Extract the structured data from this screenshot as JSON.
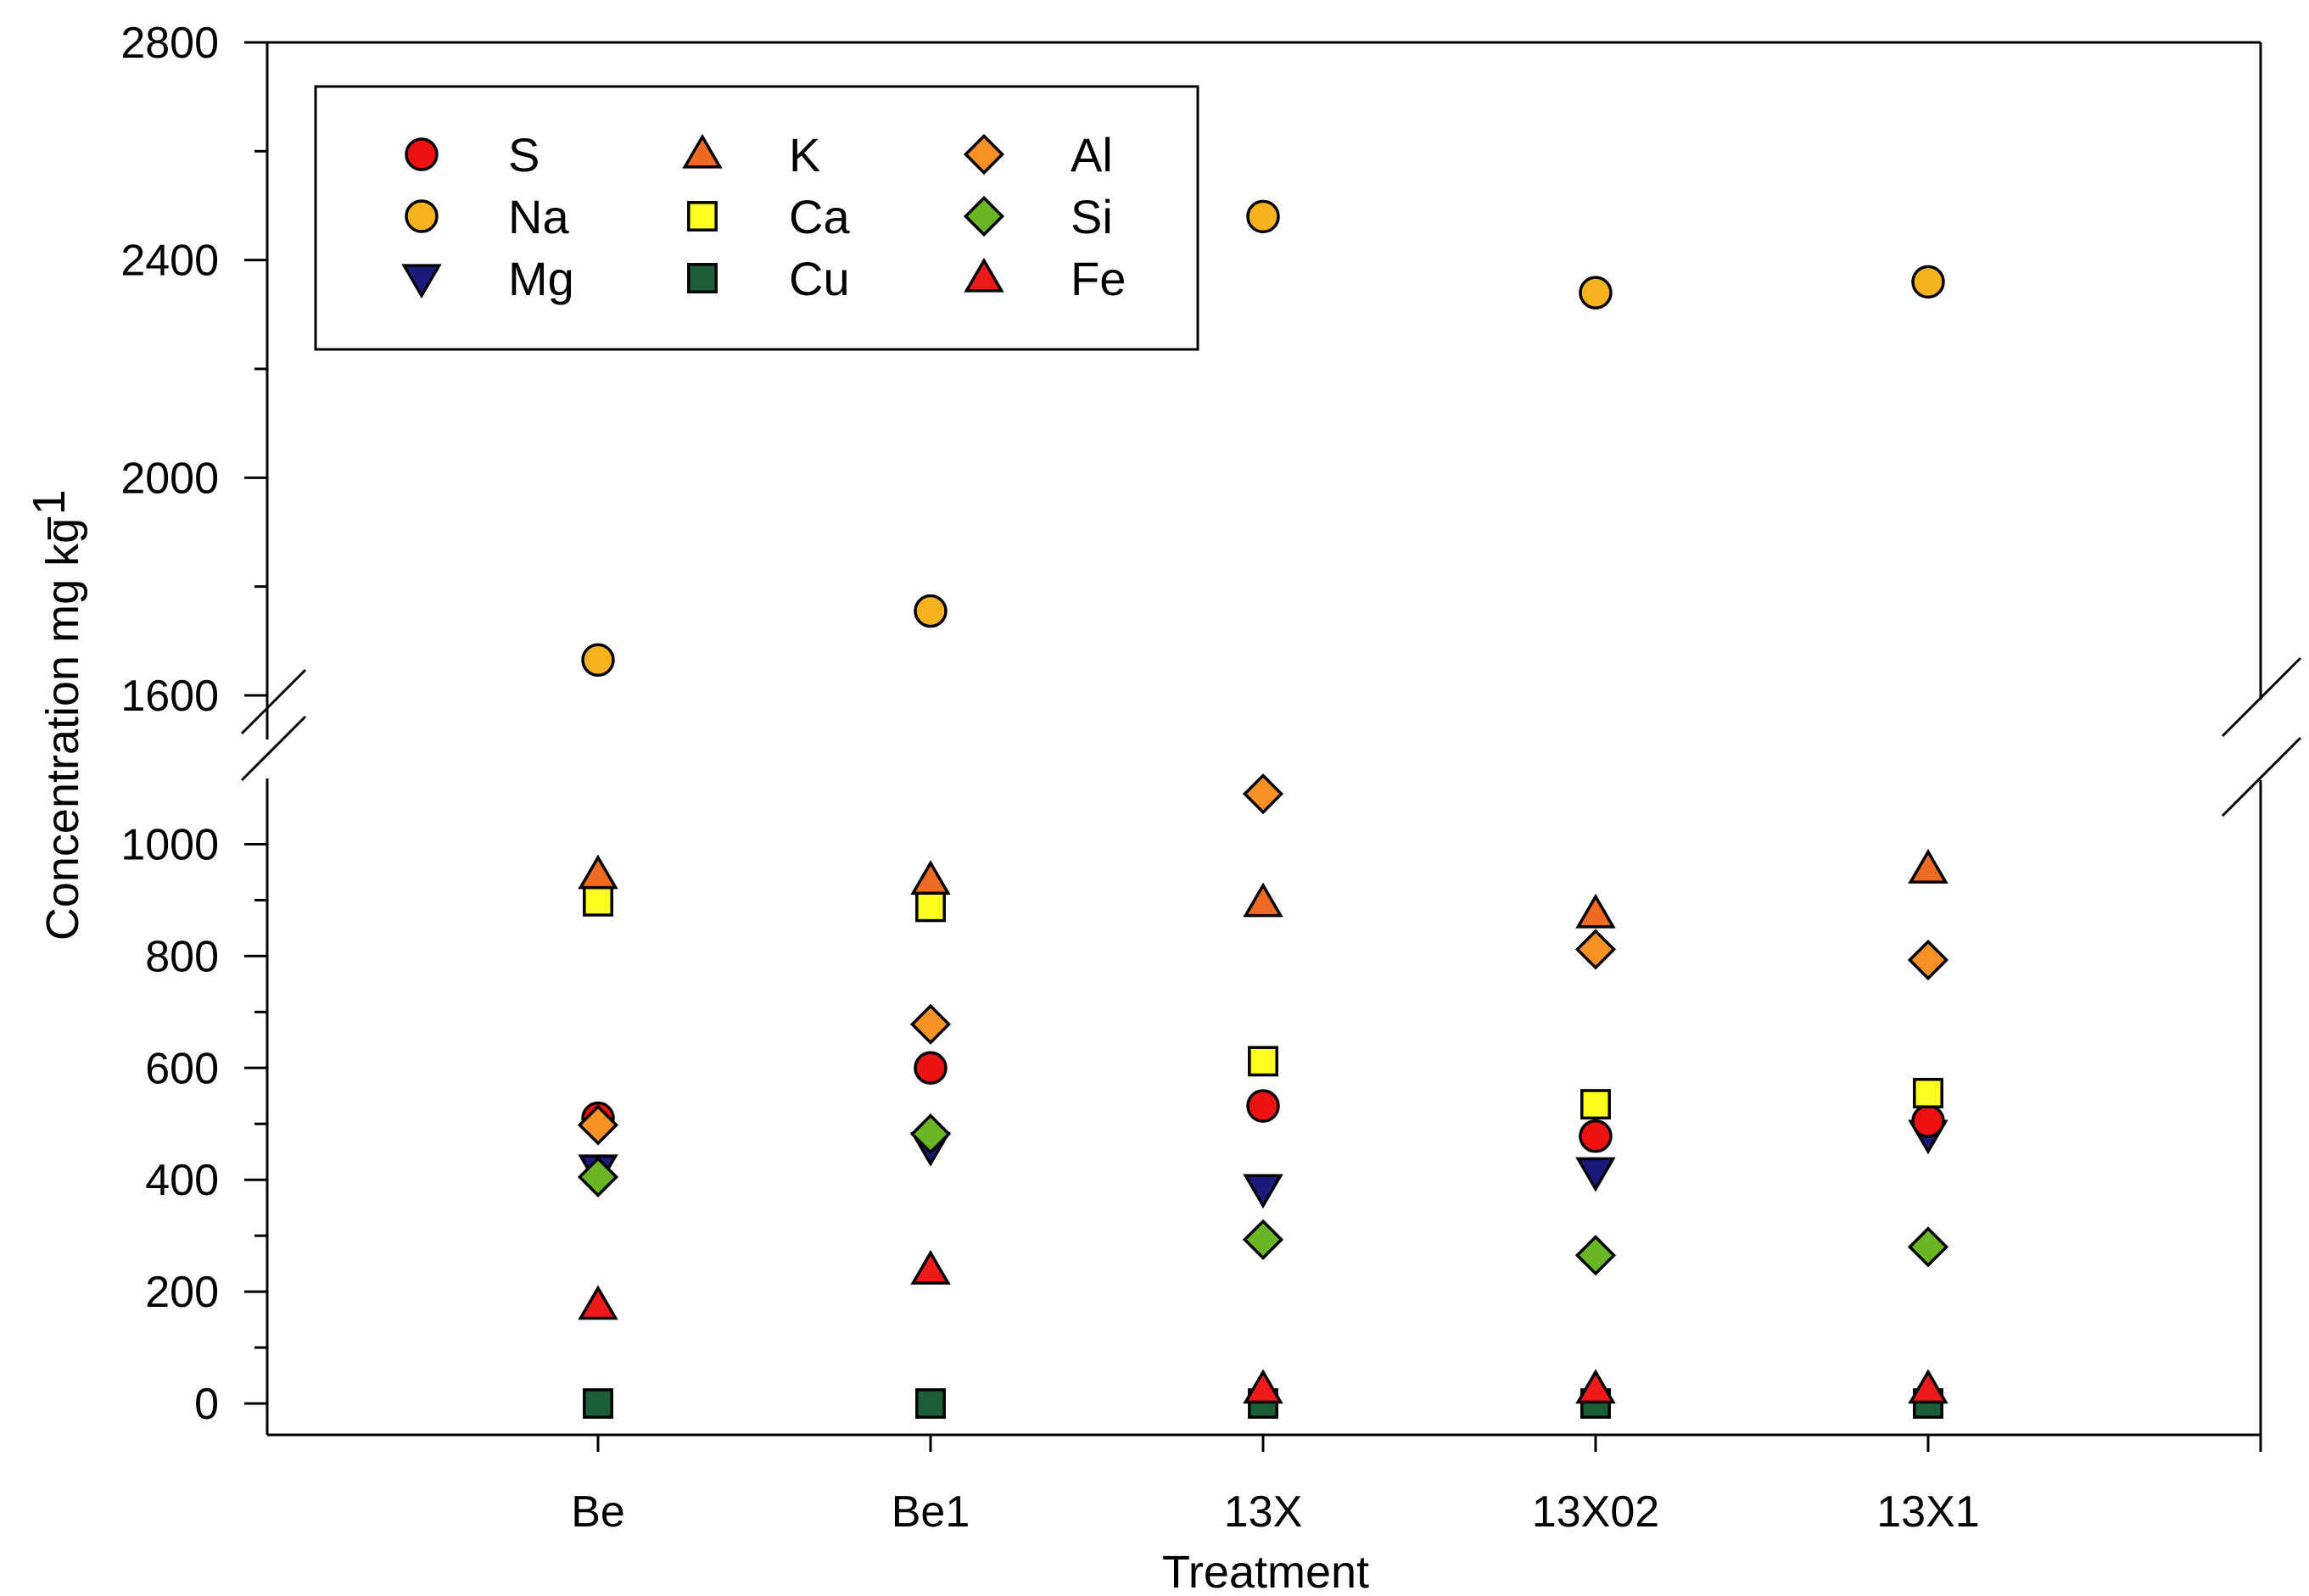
{
  "chart_data": {
    "type": "scatter",
    "xlabel": "Treatment",
    "ylabel": "Concentration mg kg",
    "ylabel_superscript": "−1",
    "categories": [
      "Be",
      "Be1",
      "13X",
      "13X02",
      "13X1"
    ],
    "y_axis_break": {
      "lower_range": [
        -50,
        1100
      ],
      "upper_range": [
        1600,
        2800
      ]
    },
    "y_ticks_lower": [
      0,
      200,
      400,
      600,
      800,
      1000
    ],
    "y_ticks_upper": [
      1600,
      2000,
      2400,
      2800
    ],
    "legend_position": "top-left",
    "series": [
      {
        "name": "S",
        "marker": "circle",
        "color": "#ee1111",
        "values": [
          510,
          600,
          532,
          478,
          505
        ]
      },
      {
        "name": "Na",
        "marker": "circle",
        "color": "#f7b31e",
        "values": [
          1665,
          1755,
          2480,
          2340,
          2360
        ]
      },
      {
        "name": "Mg",
        "marker": "triangle-down",
        "color": "#1a1a7a",
        "values": [
          420,
          460,
          385,
          415,
          482
        ]
      },
      {
        "name": "K",
        "marker": "triangle-up",
        "color": "#ef6a22",
        "values": [
          945,
          935,
          895,
          875,
          955
        ]
      },
      {
        "name": "Ca",
        "marker": "square",
        "color": "#ffff22",
        "values": [
          898,
          888,
          612,
          535,
          555
        ]
      },
      {
        "name": "Cu",
        "marker": "square",
        "color": "#1c5e38",
        "values": [
          0,
          0,
          0,
          0,
          0
        ]
      },
      {
        "name": "Al",
        "marker": "diamond",
        "color": "#f59125",
        "values": [
          498,
          678,
          1090,
          812,
          793
        ]
      },
      {
        "name": "Si",
        "marker": "diamond",
        "color": "#6ab524",
        "values": [
          405,
          482,
          293,
          265,
          280
        ]
      },
      {
        "name": "Fe",
        "marker": "triangle-up",
        "color": "#ee1a1a",
        "values": [
          175,
          238,
          25,
          25,
          25
        ]
      }
    ]
  }
}
